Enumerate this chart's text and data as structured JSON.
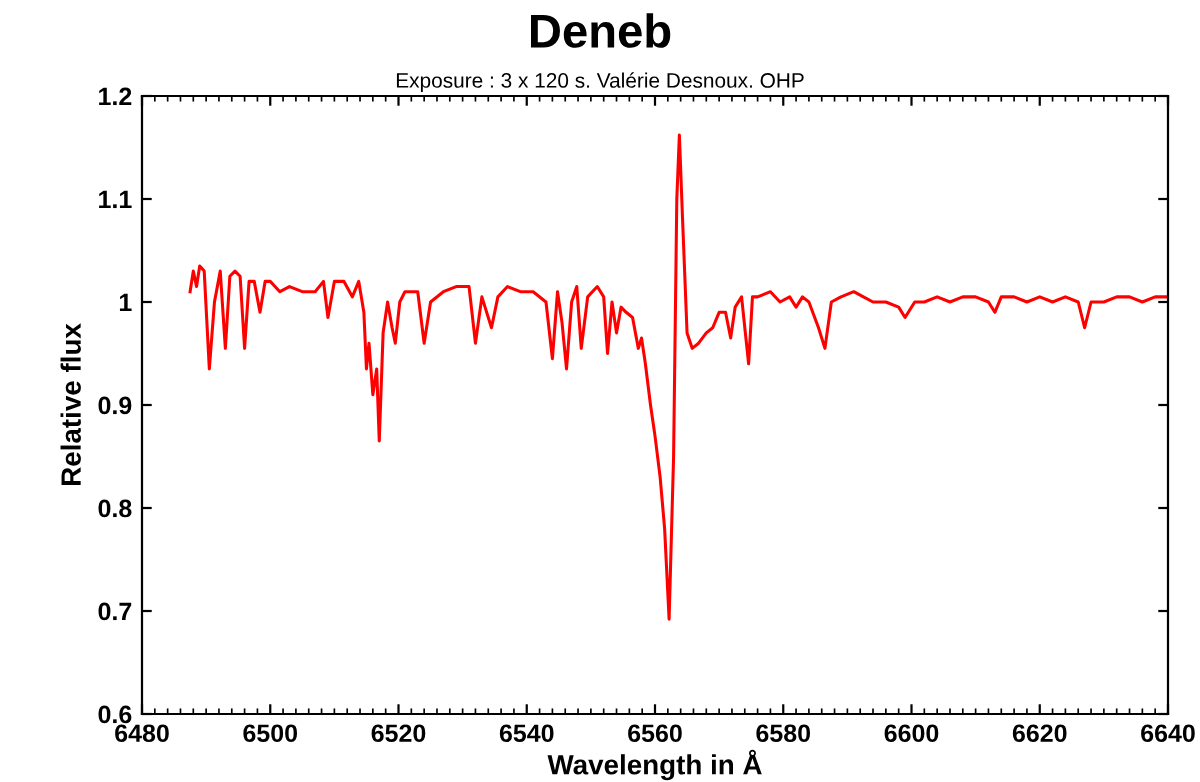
{
  "chart_data": {
    "type": "line",
    "title": "Deneb",
    "subtitle": "Exposure : 3 x 120 s. Valérie Desnoux. OHP",
    "xlabel": "Wavelength in Å",
    "ylabel": "Relative flux",
    "x": [
      6487.5,
      6488,
      6488.5,
      6489,
      6489.7,
      6490.5,
      6491.3,
      6492.2,
      6493,
      6493.7,
      6494.5,
      6495.3,
      6496,
      6496.7,
      6497.5,
      6498.4,
      6499.2,
      6500,
      6501.5,
      6503,
      6505,
      6507,
      6508.3,
      6509,
      6510,
      6511.5,
      6512.8,
      6513.8,
      6514.6,
      6515,
      6515.4,
      6516,
      6516.6,
      6517,
      6517.6,
      6518.3,
      6519,
      6519.5,
      6520.2,
      6521,
      6523,
      6524,
      6525,
      6527,
      6529,
      6531,
      6532,
      6533,
      6534.5,
      6535.5,
      6537,
      6539,
      6541,
      6543,
      6544,
      6544.8,
      6545.5,
      6546.2,
      6547,
      6547.8,
      6548.5,
      6549.5,
      6551,
      6552,
      6552.6,
      6553.3,
      6554,
      6554.7,
      6555.5,
      6556.5,
      6557.4,
      6557.9,
      6558.5,
      6559.3,
      6560,
      6560.8,
      6561.5,
      6562.2,
      6562.9,
      6563.4,
      6563.8,
      6564.3,
      6565,
      6565.8,
      6566.8,
      6568,
      6569,
      6570,
      6571,
      6571.8,
      6572.5,
      6573.5,
      6574.6,
      6575.2,
      6576,
      6578,
      6579.5,
      6581,
      6582,
      6583,
      6584,
      6585.5,
      6586.5,
      6587.5,
      6589,
      6591,
      6592.5,
      6594,
      6596,
      6598,
      6599,
      6600.5,
      6602,
      6604,
      6606,
      6608,
      6610,
      6612,
      6613,
      6614,
      6616,
      6618,
      6620,
      6622,
      6624,
      6626,
      6627,
      6628,
      6630,
      6632,
      6634,
      6636,
      6638,
      6640
    ],
    "series": [
      {
        "color": "#ff0000",
        "values": [
          1.01,
          1.03,
          1.015,
          1.035,
          1.03,
          0.935,
          1.0,
          1.03,
          0.955,
          1.025,
          1.03,
          1.025,
          0.955,
          1.02,
          1.02,
          0.99,
          1.02,
          1.02,
          1.01,
          1.015,
          1.01,
          1.01,
          1.02,
          0.985,
          1.02,
          1.02,
          1.005,
          1.02,
          0.99,
          0.935,
          0.96,
          0.91,
          0.935,
          0.865,
          0.97,
          1.0,
          0.975,
          0.96,
          1.0,
          1.01,
          1.01,
          0.96,
          1.0,
          1.01,
          1.015,
          1.015,
          0.96,
          1.005,
          0.975,
          1.005,
          1.015,
          1.01,
          1.01,
          1.0,
          0.945,
          1.01,
          0.98,
          0.935,
          1.0,
          1.015,
          0.955,
          1.005,
          1.015,
          1.005,
          0.95,
          1.0,
          0.97,
          0.995,
          0.99,
          0.985,
          0.955,
          0.965,
          0.94,
          0.9,
          0.87,
          0.83,
          0.78,
          0.692,
          0.85,
          1.1,
          1.162,
          1.08,
          0.97,
          0.955,
          0.96,
          0.97,
          0.975,
          0.99,
          0.99,
          0.965,
          0.995,
          1.005,
          0.94,
          1.005,
          1.005,
          1.01,
          1.0,
          1.005,
          0.995,
          1.005,
          1.0,
          0.975,
          0.955,
          1.0,
          1.005,
          1.01,
          1.005,
          1.0,
          1.0,
          0.995,
          0.985,
          1.0,
          1.0,
          1.005,
          1.0,
          1.005,
          1.005,
          1.0,
          0.99,
          1.005,
          1.005,
          1.0,
          1.005,
          1.0,
          1.005,
          1.0,
          0.975,
          1.0,
          1.0,
          1.005,
          1.005,
          1.0,
          1.005,
          1.005
        ]
      }
    ],
    "xlim": [
      6480,
      6640
    ],
    "xticks": [
      6480,
      6500,
      6520,
      6540,
      6560,
      6580,
      6600,
      6620,
      6640
    ],
    "ylim": [
      0.6,
      1.2
    ],
    "yticks": [
      0.6,
      0.7,
      0.8,
      0.9,
      1,
      1.1,
      1.2
    ],
    "grid": false,
    "legend": false
  }
}
